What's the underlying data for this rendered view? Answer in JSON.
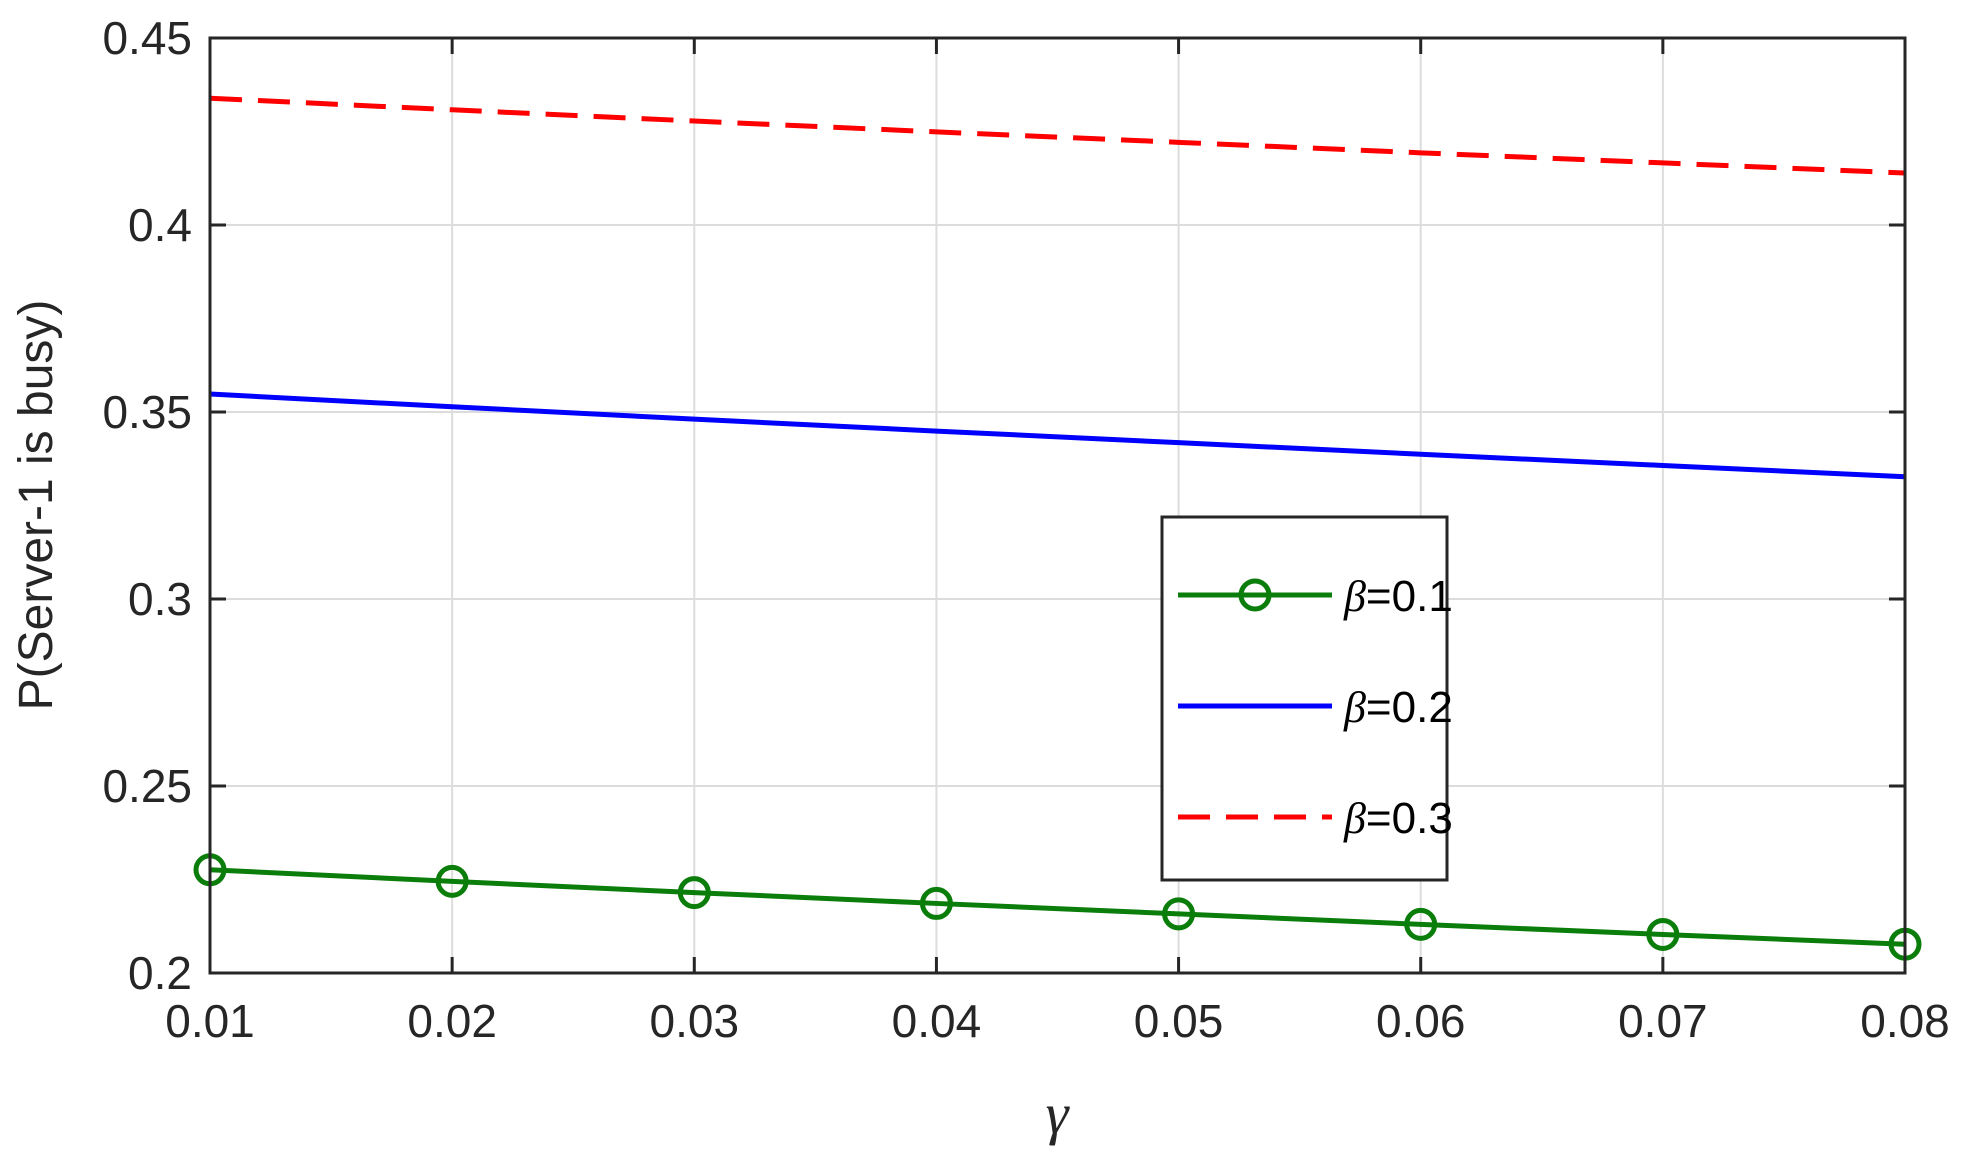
{
  "chart_data": {
    "type": "line",
    "title": "",
    "xlabel": "γ",
    "ylabel": "P(Server-1 is busy)",
    "x": [
      0.01,
      0.02,
      0.03,
      0.04,
      0.05,
      0.06,
      0.07,
      0.08
    ],
    "xlim": [
      0.01,
      0.08
    ],
    "ylim": [
      0.2,
      0.45
    ],
    "xticks": [
      "0.01",
      "0.02",
      "0.03",
      "0.04",
      "0.05",
      "0.06",
      "0.07",
      "0.08"
    ],
    "yticks": [
      "0.2",
      "0.25",
      "0.3",
      "0.35",
      "0.4",
      "0.45"
    ],
    "grid": true,
    "legend_position": "center-right",
    "series": [
      {
        "symbol": "β",
        "value_text": "=0.1",
        "color": "#0a7d0a",
        "style": "solid",
        "marker": "circle",
        "values": [
          0.2276,
          0.2245,
          0.2215,
          0.2186,
          0.2158,
          0.213,
          0.2103,
          0.2077
        ]
      },
      {
        "symbol": "β",
        "value_text": "=0.2",
        "color": "#0000ff",
        "style": "solid",
        "marker": "none",
        "values": [
          0.3548,
          0.3514,
          0.3481,
          0.3449,
          0.3418,
          0.3387,
          0.3357,
          0.3327
        ]
      },
      {
        "symbol": "β",
        "value_text": "=0.3",
        "color": "#ff0000",
        "style": "dashed",
        "marker": "none",
        "values": [
          0.4339,
          0.4308,
          0.4278,
          0.4249,
          0.4221,
          0.4193,
          0.4166,
          0.4139
        ]
      }
    ]
  }
}
